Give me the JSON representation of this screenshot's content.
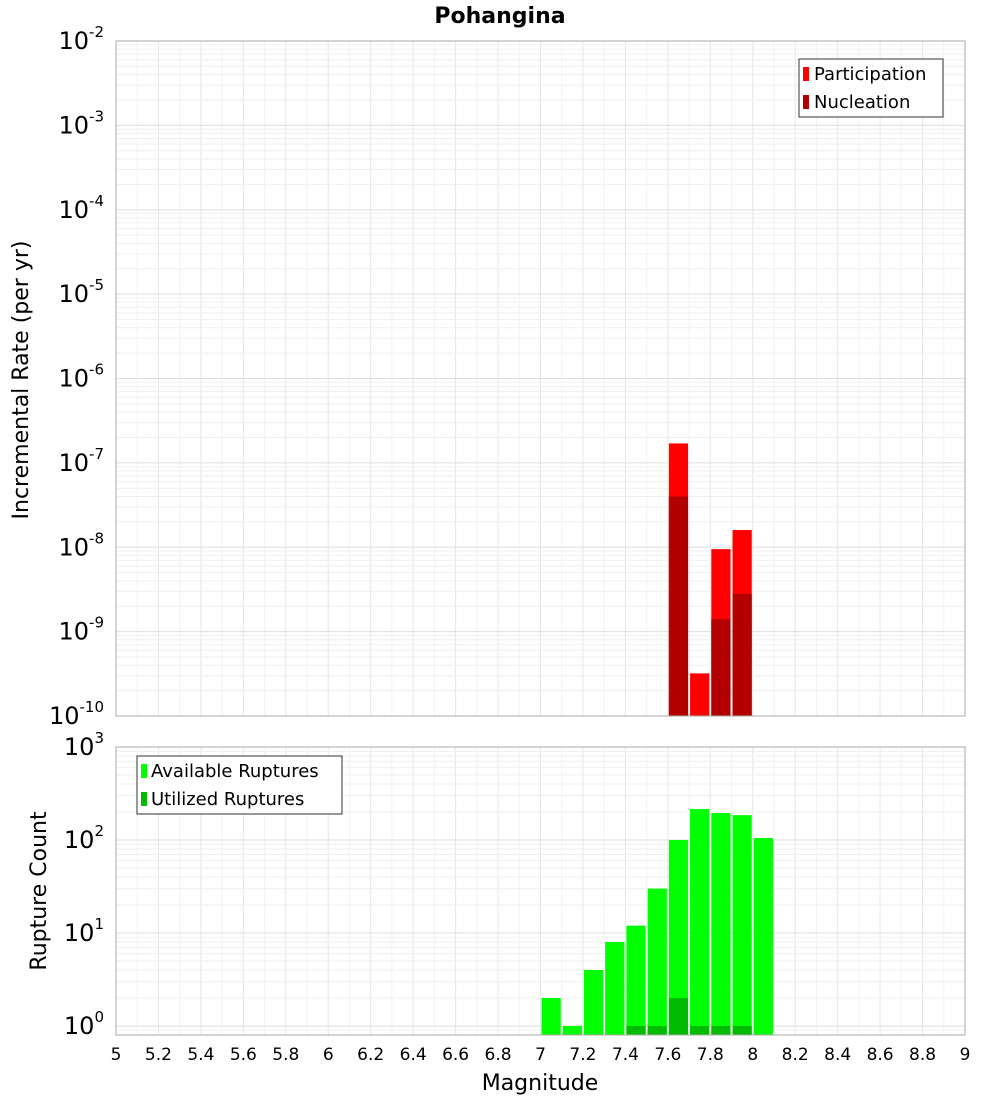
{
  "chart_data": [
    {
      "type": "bar",
      "title": "Pohangina",
      "xlabel": "",
      "ylabel": "Incremental Rate (per yr)",
      "yscale": "log",
      "xlim": [
        5,
        9
      ],
      "ylim": [
        1e-10,
        0.01
      ],
      "y_ticks": [
        {
          "base": "10",
          "exp": "-10"
        },
        {
          "base": "10",
          "exp": "-9"
        },
        {
          "base": "10",
          "exp": "-8"
        },
        {
          "base": "10",
          "exp": "-7"
        },
        {
          "base": "10",
          "exp": "-6"
        },
        {
          "base": "10",
          "exp": "-5"
        },
        {
          "base": "10",
          "exp": "-4"
        },
        {
          "base": "10",
          "exp": "-3"
        },
        {
          "base": "10",
          "exp": "-2"
        }
      ],
      "legend_position": "top-right",
      "grid": true,
      "bar_width": 0.1,
      "series": [
        {
          "name": "Participation",
          "color": "#ff0000",
          "x": [
            7.65,
            7.75,
            7.85,
            7.95
          ],
          "values": [
            1.7e-07,
            3.2e-10,
            9.5e-09,
            1.6e-08
          ]
        },
        {
          "name": "Nucleation",
          "color": "#b30000",
          "x": [
            7.65,
            7.85,
            7.95
          ],
          "values": [
            4e-08,
            1.4e-09,
            2.8e-09
          ]
        }
      ]
    },
    {
      "type": "bar",
      "title": "",
      "xlabel": "Magnitude",
      "ylabel": "Rupture Count",
      "yscale": "log",
      "xlim": [
        5,
        9
      ],
      "ylim": [
        0.8,
        1000
      ],
      "y_ticks": [
        {
          "base": "10",
          "exp": "0"
        },
        {
          "base": "10",
          "exp": "1"
        },
        {
          "base": "10",
          "exp": "2"
        },
        {
          "base": "10",
          "exp": "3"
        }
      ],
      "x_ticks": [
        "5",
        "5.2",
        "5.4",
        "5.6",
        "5.8",
        "6",
        "6.2",
        "6.4",
        "6.6",
        "6.8",
        "7",
        "7.2",
        "7.4",
        "7.6",
        "7.8",
        "8",
        "8.2",
        "8.4",
        "8.6",
        "8.8",
        "9"
      ],
      "legend_position": "top-left",
      "grid": true,
      "bar_width": 0.1,
      "series": [
        {
          "name": "Available Ruptures",
          "color": "#00ff00",
          "x": [
            7.05,
            7.15,
            7.25,
            7.35,
            7.45,
            7.55,
            7.65,
            7.75,
            7.85,
            7.95,
            8.05
          ],
          "values": [
            2,
            1,
            4,
            8,
            12,
            30,
            100,
            215,
            195,
            185,
            105
          ]
        },
        {
          "name": "Utilized Ruptures",
          "color": "#00bb00",
          "x": [
            7.45,
            7.55,
            7.65,
            7.75,
            7.85,
            7.95
          ],
          "values": [
            1,
            1,
            2,
            1,
            1,
            1
          ]
        }
      ]
    }
  ]
}
